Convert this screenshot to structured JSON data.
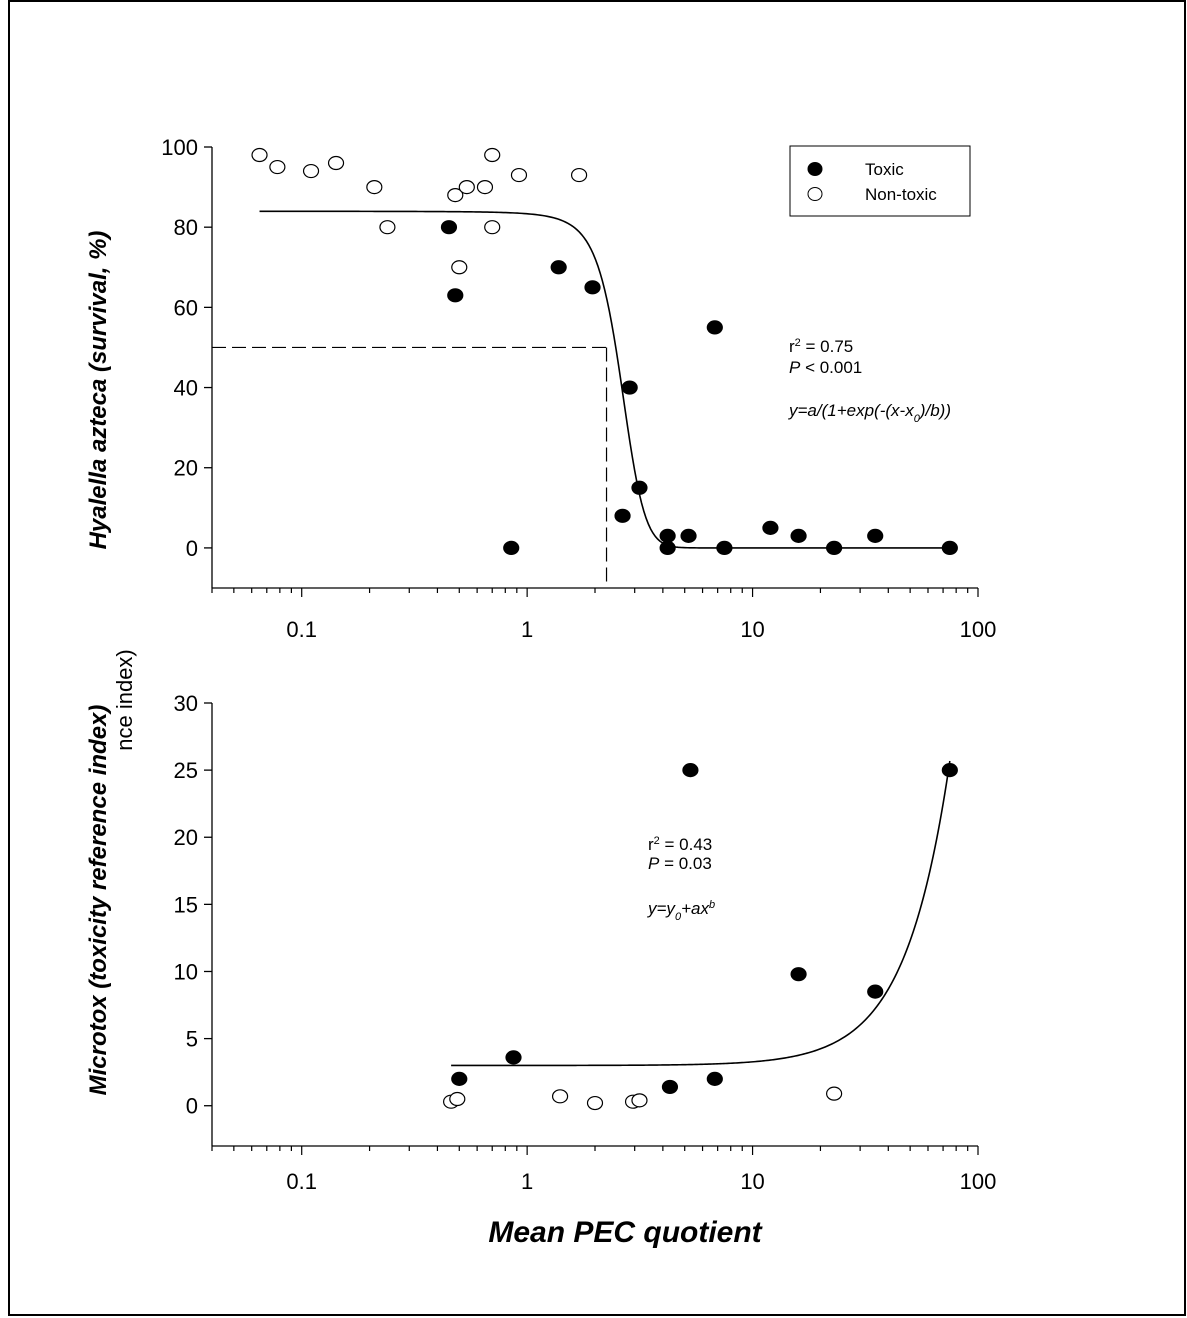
{
  "chart_data": [
    {
      "type": "scatter",
      "title": "",
      "xlabel": "",
      "ylabel_italic": "Hyalella azteca",
      "ylabel_rest": " (survival, %)",
      "x_scale": "log",
      "xlim": [
        0.04,
        100
      ],
      "ylim": [
        -10,
        100
      ],
      "y_ticks": [
        0,
        20,
        40,
        60,
        80,
        100
      ],
      "y_tick_labels": [
        "0",
        "20",
        "40",
        "60",
        "80",
        "100"
      ],
      "x_ticks": [
        0.1,
        1,
        10,
        100
      ],
      "x_tick_labels": [
        "0.1",
        "1",
        "10",
        "100"
      ],
      "legend": {
        "position": "top-right",
        "entries": [
          "Toxic",
          "Non-toxic"
        ]
      },
      "annotations": {
        "r2_prefix": "r",
        "r2_sup": "2",
        "r2_value": " = 0.75",
        "p_italic": "P",
        "p_value": " < 0.001",
        "eq_main": "y=a/(1+exp(-(x-x",
        "eq_sub": "0",
        "eq_end": ")/b))"
      },
      "reference_lines": {
        "y": 50,
        "x": 2.25
      },
      "series": [
        {
          "name": "Toxic",
          "marker": "filled-circle",
          "points": [
            [
              0.45,
              80
            ],
            [
              0.48,
              63
            ],
            [
              0.85,
              0
            ],
            [
              1.38,
              70
            ],
            [
              1.95,
              65
            ],
            [
              2.65,
              8
            ],
            [
              2.85,
              40
            ],
            [
              3.15,
              15
            ],
            [
              4.2,
              3
            ],
            [
              4.2,
              0
            ],
            [
              5.2,
              3
            ],
            [
              6.8,
              55
            ],
            [
              7.5,
              0
            ],
            [
              12,
              5
            ],
            [
              16,
              3
            ],
            [
              23,
              0
            ],
            [
              35,
              3
            ],
            [
              75,
              0
            ]
          ]
        },
        {
          "name": "Non-toxic",
          "marker": "open-circle",
          "points": [
            [
              0.065,
              98
            ],
            [
              0.078,
              95
            ],
            [
              0.11,
              94
            ],
            [
              0.142,
              96
            ],
            [
              0.21,
              90
            ],
            [
              0.24,
              80
            ],
            [
              0.48,
              88
            ],
            [
              0.5,
              70
            ],
            [
              0.54,
              90
            ],
            [
              0.65,
              90
            ],
            [
              0.7,
              98
            ],
            [
              0.7,
              80
            ],
            [
              0.92,
              93
            ],
            [
              1.7,
              93
            ]
          ]
        }
      ],
      "fit_curve": {
        "model": "logistic",
        "a": 84,
        "x0": 2.6,
        "b": 0.33,
        "x_range": [
          0.065,
          75
        ]
      }
    },
    {
      "type": "scatter",
      "title": "",
      "xlabel": "Mean PEC quotient",
      "ylabel": "Microtox (toxicity reference index)",
      "ylabel_overlap": "nce index)",
      "x_scale": "log",
      "xlim": [
        0.04,
        100
      ],
      "ylim": [
        -3,
        30
      ],
      "y_ticks": [
        0,
        5,
        10,
        15,
        20,
        25,
        30
      ],
      "y_tick_labels": [
        "0",
        "5",
        "10",
        "15",
        "20",
        "25",
        "30"
      ],
      "x_ticks": [
        0.1,
        1,
        10,
        100
      ],
      "x_tick_labels": [
        "0.1",
        "1",
        "10",
        "100"
      ],
      "annotations": {
        "r2_prefix": "r",
        "r2_sup": "2",
        "r2_value": " = 0.43",
        "p_italic": "P",
        "p_value": " = 0.03",
        "eq_a": "y=y",
        "eq_sub": "0",
        "eq_b": "+ax",
        "eq_sup": "b"
      },
      "series": [
        {
          "name": "Toxic",
          "marker": "filled-circle",
          "points": [
            [
              0.5,
              2
            ],
            [
              0.87,
              3.6
            ],
            [
              4.3,
              1.4
            ],
            [
              5.3,
              25
            ],
            [
              6.8,
              2
            ],
            [
              16,
              9.8
            ],
            [
              35,
              8.5
            ],
            [
              75,
              25
            ]
          ]
        },
        {
          "name": "Non-toxic",
          "marker": "open-circle",
          "points": [
            [
              0.46,
              0.3
            ],
            [
              0.49,
              0.5
            ],
            [
              1.4,
              0.7
            ],
            [
              2.0,
              0.2
            ],
            [
              2.95,
              0.3
            ],
            [
              3.15,
              0.4
            ],
            [
              23,
              0.9
            ]
          ]
        }
      ],
      "fit_curve": {
        "model": "power",
        "y0": 3,
        "a": 0.0017,
        "b": 2.2,
        "x_range": [
          0.46,
          75
        ]
      }
    }
  ]
}
